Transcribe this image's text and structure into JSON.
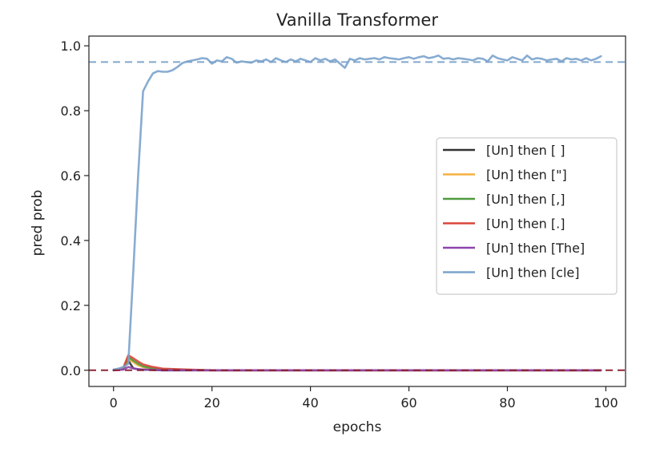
{
  "chart_data": {
    "type": "line",
    "title": "Vanilla Transformer",
    "xlabel": "epochs",
    "ylabel": "pred prob",
    "xlim": [
      -5,
      104
    ],
    "ylim": [
      -0.05,
      1.03
    ],
    "xticks": [
      0,
      20,
      40,
      60,
      80,
      100
    ],
    "yticks": [
      0.0,
      0.2,
      0.4,
      0.6,
      0.8,
      1.0
    ],
    "xtick_labels": [
      "0",
      "20",
      "40",
      "60",
      "80",
      "100"
    ],
    "ytick_labels": [
      "0.0",
      "0.2",
      "0.4",
      "0.6",
      "0.8",
      "1.0"
    ],
    "grid": false,
    "legend_position": "center-right",
    "reference_lines": [
      {
        "y": 0.95,
        "color": "#7ba3cc",
        "style": "dashed"
      },
      {
        "y": 0.0,
        "color": "#8b1a2b",
        "style": "dashed"
      }
    ],
    "series": [
      {
        "name": "[Un] then [ ]",
        "color": "#333333",
        "x": [
          0,
          1,
          2,
          3,
          4,
          5,
          6,
          8,
          10,
          15,
          20,
          40,
          60,
          80,
          99
        ],
        "y": [
          0.0,
          0.002,
          0.004,
          0.03,
          0.006,
          0.003,
          0.002,
          0.001,
          0.0,
          0.0,
          0.0,
          0.0,
          0.0,
          0.0,
          0.0
        ]
      },
      {
        "name": "[Un] then [\"]",
        "color": "#f5b041",
        "x": [
          0,
          1,
          2,
          3,
          4,
          5,
          6,
          8,
          10,
          15,
          20,
          40,
          60,
          80,
          99
        ],
        "y": [
          0.0,
          0.002,
          0.006,
          0.035,
          0.025,
          0.015,
          0.01,
          0.006,
          0.003,
          0.001,
          0.0,
          0.0,
          0.0,
          0.0,
          0.0
        ]
      },
      {
        "name": "[Un] then [,]",
        "color": "#4e9a3d",
        "x": [
          0,
          1,
          2,
          3,
          4,
          5,
          6,
          8,
          10,
          15,
          20,
          40,
          60,
          80,
          99
        ],
        "y": [
          0.0,
          0.002,
          0.005,
          0.04,
          0.03,
          0.02,
          0.012,
          0.006,
          0.003,
          0.001,
          0.0,
          0.0,
          0.0,
          0.0,
          0.0
        ]
      },
      {
        "name": "[Un] then [.]",
        "color": "#d9473b",
        "x": [
          0,
          1,
          2,
          3,
          4,
          5,
          6,
          8,
          10,
          15,
          20,
          40,
          60,
          80,
          99
        ],
        "y": [
          0.0,
          0.003,
          0.008,
          0.046,
          0.037,
          0.027,
          0.018,
          0.01,
          0.005,
          0.002,
          0.0,
          0.0,
          0.0,
          0.0,
          0.0
        ]
      },
      {
        "name": "[Un] then [The]",
        "color": "#8e44ad",
        "x": [
          0,
          1,
          2,
          3,
          4,
          5,
          6,
          8,
          10,
          15,
          20,
          40,
          60,
          80,
          99
        ],
        "y": [
          0.0,
          0.001,
          0.002,
          0.01,
          0.006,
          0.003,
          0.002,
          0.001,
          0.0,
          0.0,
          0.0,
          0.0,
          0.0,
          0.0,
          0.0
        ]
      },
      {
        "name": "[Un] then [cle]",
        "color": "#7ba3cc",
        "x": [
          0,
          1,
          2,
          3,
          4,
          5,
          6,
          7,
          8,
          9,
          10,
          11,
          12,
          13,
          14,
          15,
          16,
          17,
          18,
          19,
          20,
          21,
          22,
          23,
          24,
          25,
          26,
          27,
          28,
          29,
          30,
          31,
          32,
          33,
          34,
          35,
          36,
          37,
          38,
          39,
          40,
          41,
          42,
          43,
          44,
          45,
          46,
          47,
          48,
          49,
          50,
          51,
          52,
          53,
          54,
          55,
          56,
          57,
          58,
          59,
          60,
          61,
          62,
          63,
          64,
          65,
          66,
          67,
          68,
          69,
          70,
          71,
          72,
          73,
          74,
          75,
          76,
          77,
          78,
          79,
          80,
          81,
          82,
          83,
          84,
          85,
          86,
          87,
          88,
          89,
          90,
          91,
          92,
          93,
          94,
          95,
          96,
          97,
          98,
          99
        ],
        "y": [
          0.002,
          0.005,
          0.01,
          0.02,
          0.3,
          0.6,
          0.86,
          0.89,
          0.915,
          0.922,
          0.92,
          0.92,
          0.925,
          0.935,
          0.947,
          0.952,
          0.955,
          0.958,
          0.962,
          0.96,
          0.945,
          0.955,
          0.952,
          0.965,
          0.96,
          0.948,
          0.952,
          0.95,
          0.948,
          0.955,
          0.952,
          0.958,
          0.95,
          0.962,
          0.955,
          0.95,
          0.958,
          0.952,
          0.96,
          0.955,
          0.95,
          0.962,
          0.955,
          0.96,
          0.952,
          0.958,
          0.945,
          0.932,
          0.96,
          0.955,
          0.962,
          0.958,
          0.96,
          0.962,
          0.958,
          0.965,
          0.962,
          0.96,
          0.958,
          0.962,
          0.965,
          0.96,
          0.965,
          0.968,
          0.962,
          0.965,
          0.97,
          0.96,
          0.962,
          0.958,
          0.962,
          0.96,
          0.958,
          0.955,
          0.962,
          0.96,
          0.952,
          0.97,
          0.962,
          0.958,
          0.955,
          0.965,
          0.96,
          0.955,
          0.97,
          0.958,
          0.962,
          0.96,
          0.955,
          0.958,
          0.96,
          0.952,
          0.962,
          0.958,
          0.96,
          0.955,
          0.962,
          0.955,
          0.96,
          0.968
        ]
      }
    ]
  }
}
